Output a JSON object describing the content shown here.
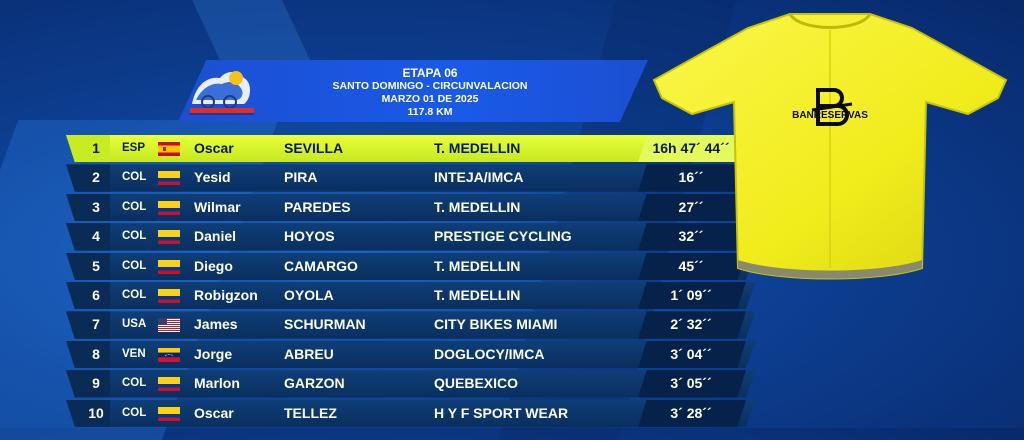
{
  "stage": {
    "title": "ETAPA 06",
    "route": "SANTO DOMINGO - CIRCUNVALACION",
    "date": "MARZO 01 DE 2025",
    "distance": "117.8 KM"
  },
  "jersey": {
    "sponsor": "BANRESERVAS",
    "color": "#f5f023"
  },
  "results": [
    {
      "pos": "1",
      "country": "ESP",
      "flag": "spain-flag",
      "first": "Oscar",
      "last": "SEVILLA",
      "team": "T. MEDELLIN",
      "time": "16h 47´ 44´´"
    },
    {
      "pos": "2",
      "country": "COL",
      "flag": "colombia-flag",
      "first": "Yesid",
      "last": "PIRA",
      "team": "INTEJA/IMCA",
      "time": "16´´"
    },
    {
      "pos": "3",
      "country": "COL",
      "flag": "colombia-flag",
      "first": "Wilmar",
      "last": "PAREDES",
      "team": "T. MEDELLIN",
      "time": "27´´"
    },
    {
      "pos": "4",
      "country": "COL",
      "flag": "colombia-flag",
      "first": "Daniel",
      "last": "HOYOS",
      "team": "PRESTIGE CYCLING",
      "time": "32´´"
    },
    {
      "pos": "5",
      "country": "COL",
      "flag": "colombia-flag",
      "first": "Diego",
      "last": "CAMARGO",
      "team": "T. MEDELLIN",
      "time": "45´´"
    },
    {
      "pos": "6",
      "country": "COL",
      "flag": "colombia-flag",
      "first": "Robigzon",
      "last": "OYOLA",
      "team": "T. MEDELLIN",
      "time": "1´ 09´´"
    },
    {
      "pos": "7",
      "country": "USA",
      "flag": "usa-flag",
      "first": "James",
      "last": "SCHURMAN",
      "team": "CITY BIKES MIAMI",
      "time": "2´ 32´´"
    },
    {
      "pos": "8",
      "country": "VEN",
      "flag": "venezuela-flag",
      "first": "Jorge",
      "last": "ABREU",
      "team": "DOGLOCY/IMCA",
      "time": "3´ 04´´"
    },
    {
      "pos": "9",
      "country": "COL",
      "flag": "colombia-flag",
      "first": "Marlon",
      "last": "GARZON",
      "team": "QUEBEXICO",
      "time": "3´ 05´´"
    },
    {
      "pos": "10",
      "country": "COL",
      "flag": "colombia-flag",
      "first": "Oscar",
      "last": "TELLEZ",
      "team": "H Y F SPORT WEAR",
      "time": "3´ 28´´"
    }
  ]
}
